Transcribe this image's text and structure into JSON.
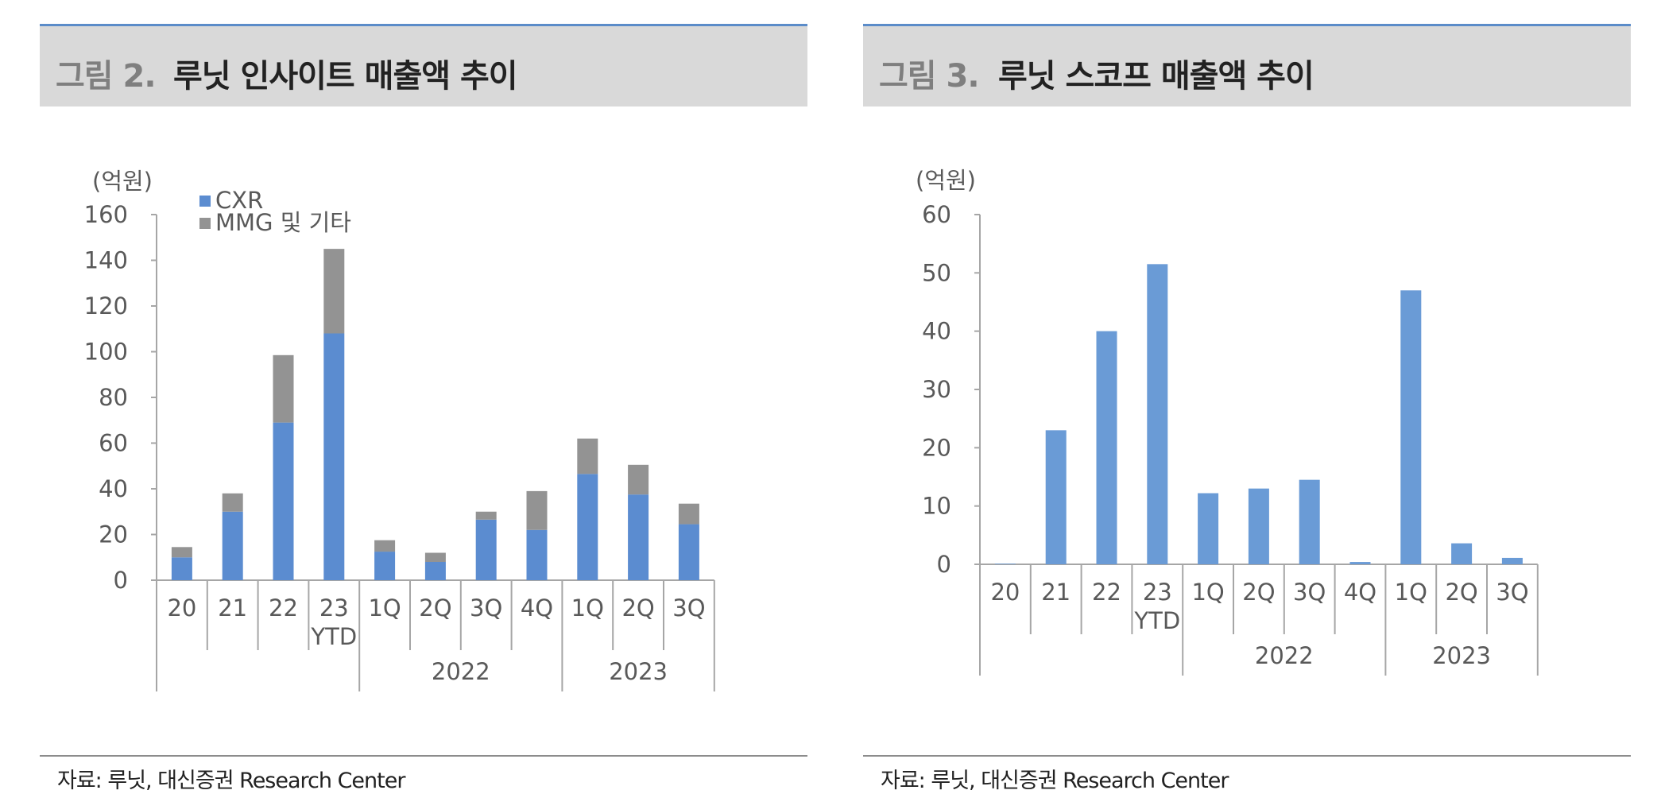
{
  "left": {
    "fig_label": "그림 2.",
    "fig_title": "루닛 인사이트 매출액 추이",
    "source": "자료: 루닛, 대신증권 Research Center"
  },
  "right": {
    "fig_label": "그림 3.",
    "fig_title": "루닛 스코프 매출액 추이",
    "source": "자료: 루닛, 대신증권 Research Center"
  },
  "chart_data": [
    {
      "type": "bar",
      "stacked": true,
      "title": "루닛 인사이트 매출액 추이",
      "unit_label": "(억원)",
      "categories": [
        "20",
        "21",
        "22",
        "23\nYTD",
        "1Q",
        "2Q",
        "3Q",
        "4Q",
        "1Q",
        "2Q",
        "3Q"
      ],
      "groups": [
        {
          "label": "2022",
          "start": 4,
          "end": 7
        },
        {
          "label": "2023",
          "start": 8,
          "end": 10
        }
      ],
      "series": [
        {
          "name": "CXR",
          "color": "#5b8cd0",
          "values": [
            10,
            30,
            69,
            108,
            12.5,
            8,
            26.5,
            22,
            46.5,
            37.5,
            24.5
          ]
        },
        {
          "name": "MMG 및 기타",
          "color": "#939393",
          "values": [
            4.5,
            8,
            29.5,
            37,
            5,
            4,
            3.5,
            17,
            15.5,
            13,
            9
          ]
        }
      ],
      "ylim": [
        0,
        160
      ],
      "yticks": [
        0,
        20,
        40,
        60,
        80,
        100,
        120,
        140,
        160
      ],
      "legend": "top-left"
    },
    {
      "type": "bar",
      "title": "루닛 스코프 매출액 추이",
      "unit_label": "(억원)",
      "categories": [
        "20",
        "21",
        "22",
        "23\nYTD",
        "1Q",
        "2Q",
        "3Q",
        "4Q",
        "1Q",
        "2Q",
        "3Q"
      ],
      "groups": [
        {
          "label": "2022",
          "start": 4,
          "end": 7
        },
        {
          "label": "2023",
          "start": 8,
          "end": 10
        }
      ],
      "series": [
        {
          "color": "#6a9bd6",
          "values": [
            0.1,
            23,
            40,
            51.5,
            12.2,
            13,
            14.5,
            0.4,
            47,
            3.6,
            1.1
          ]
        }
      ],
      "ylim": [
        0,
        60
      ],
      "yticks": [
        0,
        10,
        20,
        30,
        40,
        50,
        60
      ]
    }
  ]
}
